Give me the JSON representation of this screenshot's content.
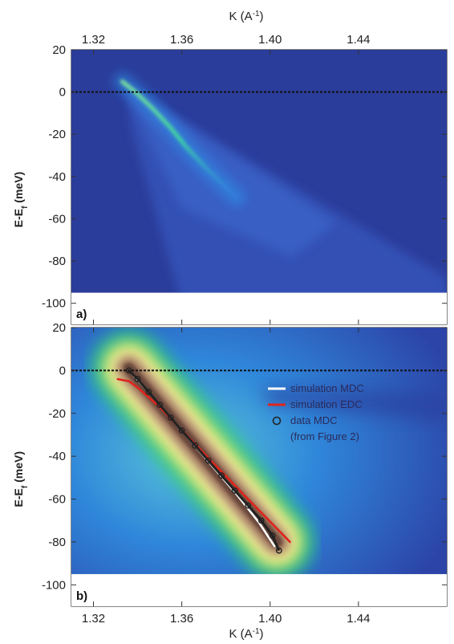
{
  "chart_data": [
    {
      "type": "heatmap",
      "panel_label": "a)",
      "xlabel": "K (A",
      "xlabel_sup": "-1",
      "xlabel_end": ")",
      "ylabel": "E-E",
      "ylabel_sub": "f",
      "ylabel_unit": " (meV)",
      "xlim": [
        1.31,
        1.48
      ],
      "ylim": [
        -110,
        20
      ],
      "x_ticks": [
        1.32,
        1.36,
        1.4,
        1.44
      ],
      "x_tick_labels": [
        "1.32",
        "1.36",
        "1.40",
        "1.44"
      ],
      "y_ticks": [
        20,
        0,
        -20,
        -40,
        -60,
        -80,
        -100
      ],
      "y_tick_labels": [
        "20",
        "0",
        "-20",
        "-40",
        "-60",
        "-80",
        "-100"
      ],
      "data_extent_y": [
        -95,
        20
      ],
      "fermi_line_y": 0,
      "colors": {
        "background": "#2a3d9a",
        "high": "#3fd6a0",
        "mid": "#2a8ee8",
        "low": "#3555c0"
      },
      "dispersion_line": {
        "x": [
          1.333,
          1.339,
          1.347,
          1.355,
          1.362,
          1.372,
          1.385
        ],
        "y": [
          5,
          0,
          -8,
          -17,
          -26,
          -37,
          -50
        ]
      }
    },
    {
      "type": "heatmap",
      "panel_label": "b)",
      "xlabel": "K (A",
      "xlabel_sup": "-1",
      "xlabel_end": ")",
      "ylabel": "E-E",
      "ylabel_sub": "f",
      "ylabel_unit": " (meV)",
      "xlim": [
        1.31,
        1.48
      ],
      "ylim": [
        -110,
        20
      ],
      "x_ticks": [
        1.32,
        1.36,
        1.4,
        1.44
      ],
      "x_tick_labels": [
        "1.32",
        "1.36",
        "1.40",
        "1.44"
      ],
      "y_ticks": [
        20,
        0,
        -20,
        -40,
        -60,
        -80,
        -100
      ],
      "y_tick_labels": [
        "20",
        "0",
        "-20",
        "-40",
        "-60",
        "-80",
        "-100"
      ],
      "data_extent_y": [
        -95,
        20
      ],
      "fermi_line_y": 0,
      "legend_position": "top-right",
      "legend": [
        "simulation MDC",
        "simulation EDC",
        "data MDC",
        "(from Figure 2)"
      ],
      "series": [
        {
          "name": "simulation MDC",
          "color": "#ffffff",
          "x": [
            1.337,
            1.345,
            1.355,
            1.365,
            1.375,
            1.385,
            1.395,
            1.402
          ],
          "y": [
            -1,
            -10,
            -22,
            -34,
            -46,
            -58,
            -71,
            -82
          ]
        },
        {
          "name": "simulation EDC",
          "color": "#e0241c",
          "x": [
            1.331,
            1.336,
            1.34,
            1.35,
            1.362,
            1.375,
            1.39,
            1.409
          ],
          "y": [
            -4,
            -5,
            -8,
            -17,
            -30,
            -44,
            -60,
            -80
          ]
        },
        {
          "name": "data MDC",
          "color": "#222222",
          "x": [
            1.336,
            1.34,
            1.345,
            1.35,
            1.355,
            1.36,
            1.366,
            1.372,
            1.378,
            1.384,
            1.39,
            1.396,
            1.401,
            1.404
          ],
          "y": [
            0,
            -4,
            -10,
            -16,
            -22,
            -28,
            -35,
            -42,
            -49,
            -56,
            -63,
            -70,
            -77,
            -84
          ]
        }
      ]
    }
  ]
}
